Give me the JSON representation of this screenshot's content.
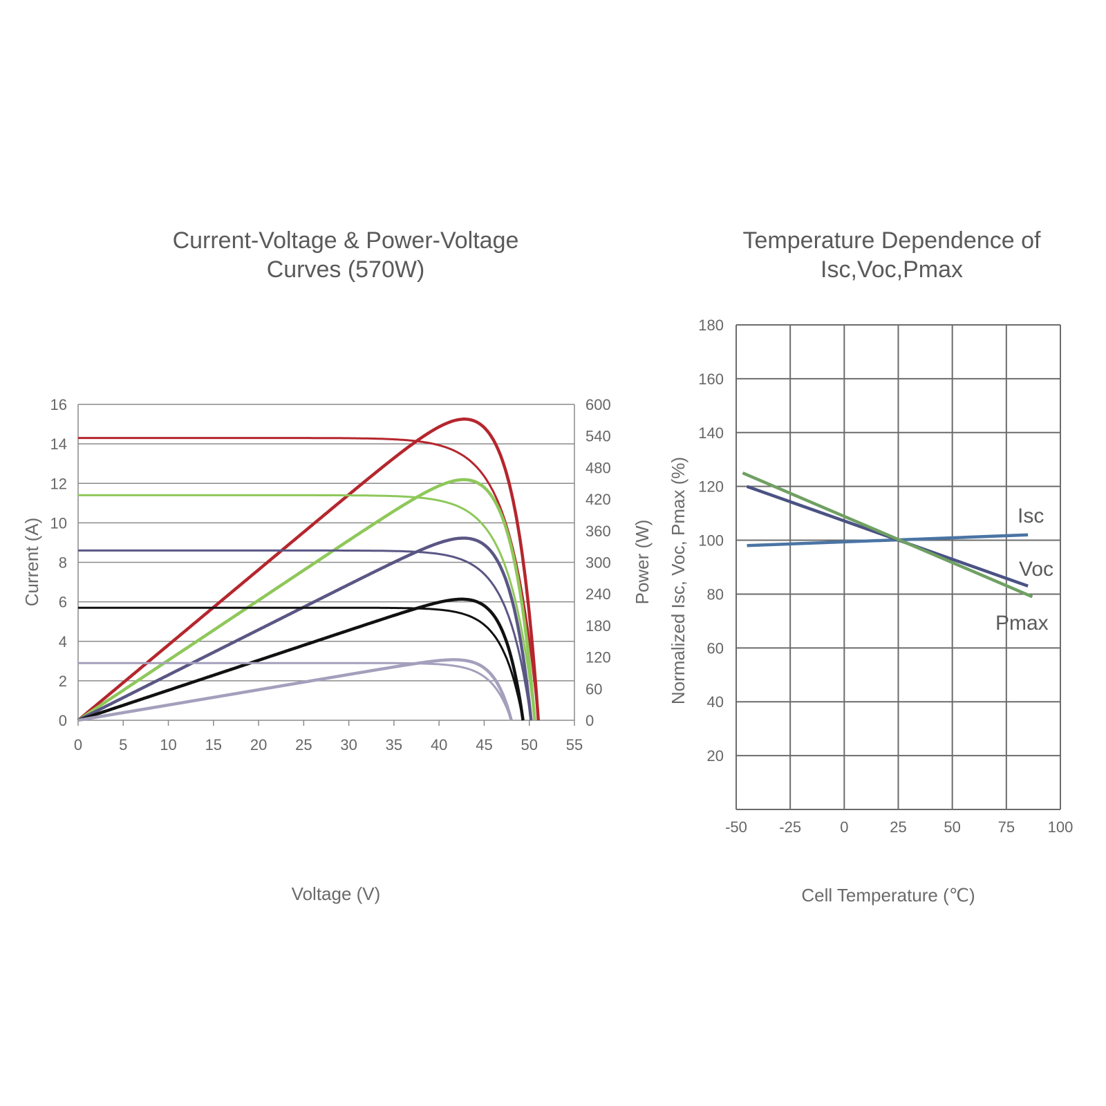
{
  "chart_data": [
    {
      "type": "line",
      "title": "Current-Voltage & Power-Voltage Curves (570W)",
      "title_lines": [
        "Current-Voltage & Power-Voltage",
        "Curves (570W)"
      ],
      "xlabel": "Voltage (V)",
      "ylabel": "Current (A)",
      "y2label": "Power (W)",
      "xlim": [
        0,
        55
      ],
      "ylim": [
        0,
        16
      ],
      "y2lim": [
        0,
        600
      ],
      "x_ticks": [
        "0",
        "5",
        "10",
        "15",
        "20",
        "25",
        "30",
        "35",
        "40",
        "45",
        "50",
        "55"
      ],
      "y_ticks": [
        "0",
        "2",
        "4",
        "6",
        "8",
        "10",
        "12",
        "14",
        "16"
      ],
      "y2_ticks": [
        "0",
        "60",
        "120",
        "180",
        "240",
        "300",
        "360",
        "420",
        "480",
        "540",
        "600"
      ],
      "grid": "horizontal",
      "series": [
        {
          "color": "#b5262d",
          "isc": 14.3,
          "voc": 51.0,
          "pmax": 572,
          "vmp": 42.2
        },
        {
          "color": "#8ec85a",
          "isc": 11.4,
          "voc": 50.6,
          "pmax": 457,
          "vmp": 42.3
        },
        {
          "color": "#5a5684",
          "isc": 8.6,
          "voc": 50.2,
          "pmax": 346,
          "vmp": 42.2
        },
        {
          "color": "#111111",
          "isc": 5.7,
          "voc": 49.3,
          "pmax": 230,
          "vmp": 41.8
        },
        {
          "color": "#a49fbc",
          "isc": 2.9,
          "voc": 48.0,
          "pmax": 115,
          "vmp": 41.8
        }
      ]
    },
    {
      "type": "line",
      "title": "Temperature Dependence of Isc,Voc,Pmax",
      "title_lines": [
        "Temperature Dependence of",
        "Isc,Voc,Pmax"
      ],
      "xlabel": "Cell Temperature (℃)",
      "ylabel": "Normalized Isc, Voc, Pmax (%)",
      "xlim": [
        -50,
        100
      ],
      "ylim": [
        0,
        180
      ],
      "x_ticks": [
        "-50",
        "-25",
        "0",
        "25",
        "50",
        "75",
        "100"
      ],
      "y_ticks": [
        "20",
        "40",
        "60",
        "80",
        "100",
        "120",
        "140",
        "160",
        "180"
      ],
      "grid": "both",
      "series": [
        {
          "name": "Isc",
          "color": "#4a74a4",
          "x": [
            -45,
            85
          ],
          "y": [
            98,
            102
          ]
        },
        {
          "name": "Voc",
          "color": "#4b5284",
          "x": [
            -45,
            85
          ],
          "y": [
            120,
            83
          ]
        },
        {
          "name": "Pmax",
          "color": "#6fa063",
          "x": [
            -47,
            87
          ],
          "y": [
            125,
            79
          ]
        }
      ]
    }
  ]
}
